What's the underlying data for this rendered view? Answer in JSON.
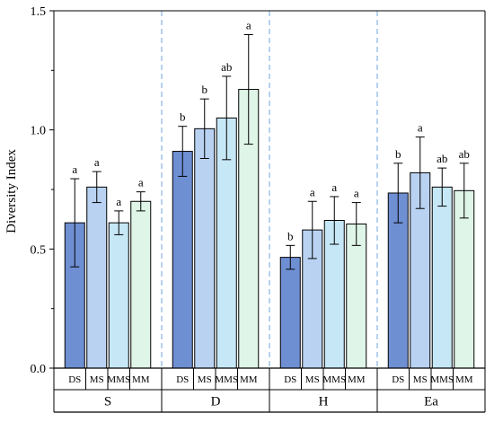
{
  "chart_data": {
    "type": "bar",
    "ylabel": "Diversity Index",
    "ylim": [
      0,
      1.5
    ],
    "yticks": [
      "0.0",
      "0.5",
      "1.0",
      "1.5"
    ],
    "legend": "none",
    "grid": false,
    "category_labels": [
      "DS",
      "MS",
      "MMS",
      "MM"
    ],
    "colors": {
      "DS": "#6f8fd3",
      "MS": "#b9d2f2",
      "MMS": "#c6e7f6",
      "MM": "#dff5e8"
    },
    "groups": [
      {
        "name": "S",
        "values": [
          0.61,
          0.76,
          0.61,
          0.7
        ],
        "errors": [
          0.185,
          0.065,
          0.05,
          0.04
        ],
        "significance": [
          "a",
          "a",
          "a",
          "a"
        ]
      },
      {
        "name": "D",
        "values": [
          0.91,
          1.005,
          1.05,
          1.17
        ],
        "errors": [
          0.105,
          0.125,
          0.175,
          0.23
        ],
        "significance": [
          "b",
          "b",
          "ab",
          "a"
        ]
      },
      {
        "name": "H",
        "values": [
          0.465,
          0.58,
          0.62,
          0.605
        ],
        "errors": [
          0.05,
          0.12,
          0.1,
          0.09
        ],
        "significance": [
          "b",
          "a",
          "a",
          "a"
        ]
      },
      {
        "name": "Ea",
        "values": [
          0.735,
          0.82,
          0.76,
          0.745
        ],
        "errors": [
          0.125,
          0.15,
          0.08,
          0.115
        ],
        "significance": [
          "b",
          "a",
          "ab",
          "ab"
        ]
      }
    ]
  }
}
